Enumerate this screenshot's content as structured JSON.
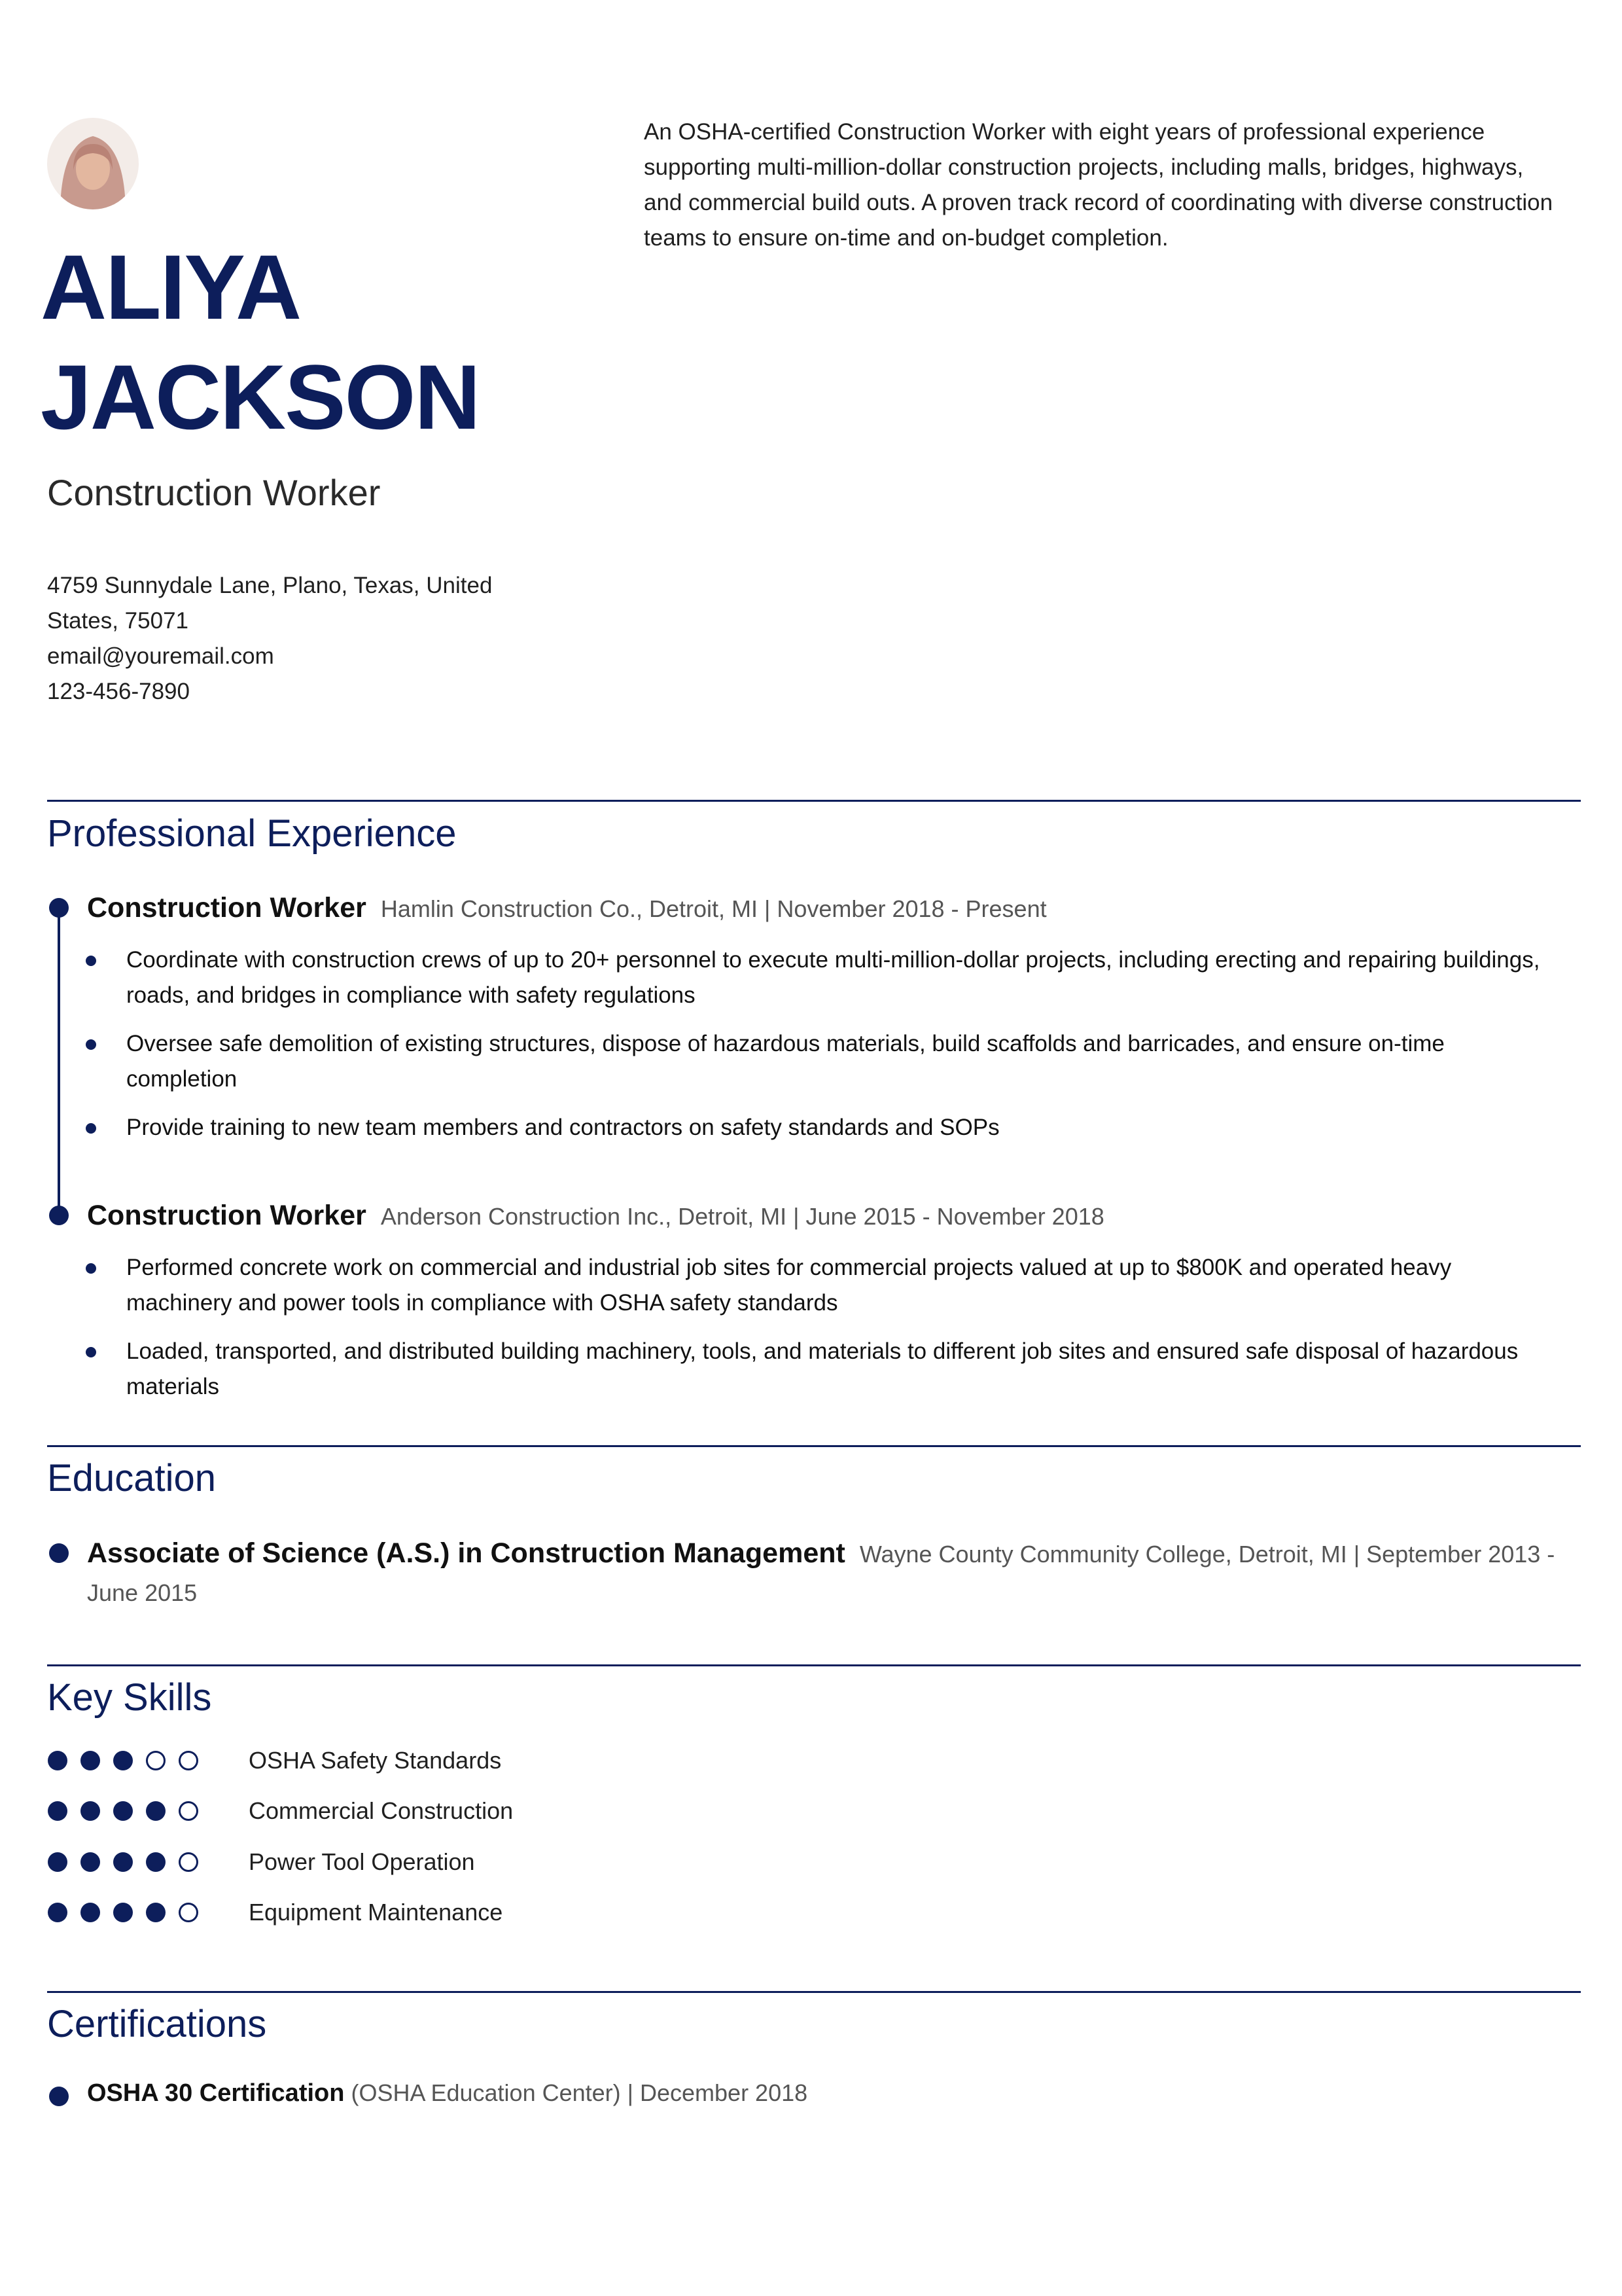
{
  "header": {
    "name": [
      "ALIYA",
      "JACKSON"
    ],
    "title": "Construction Worker",
    "summary": "An OSHA-certified Construction Worker with eight years of professional experience supporting multi-million-dollar construction projects, including malls, bridges, highways, and commercial build outs. A proven track record of coordinating with diverse construction teams to ensure on-time and on-budget completion.",
    "contact": {
      "address": "4759 Sunnydale Lane, Plano, Texas, United States, 75071",
      "email": "email@youremail.com",
      "phone": "123-456-7890"
    }
  },
  "sections": {
    "experience": {
      "title": "Professional Experience",
      "jobs": [
        {
          "role": "Construction Worker",
          "details": "Hamlin Construction Co., Detroit, MI | November 2018 - Present",
          "bullets": [
            "Coordinate with construction crews of up to 20+ personnel to execute multi-million-dollar projects, including erecting and repairing buildings, roads, and bridges in compliance with safety regulations",
            "Oversee safe demolition of existing structures, dispose of hazardous materials, build scaffolds and barricades, and ensure on-time completion",
            "Provide training to new team members and contractors on safety standards and SOPs"
          ]
        },
        {
          "role": "Construction Worker",
          "details": "Anderson Construction Inc., Detroit, MI | June 2015 - November 2018",
          "bullets": [
            "Performed concrete work on commercial and industrial job sites for commercial projects valued at up to $800K and operated heavy machinery and power tools in compliance with OSHA safety standards",
            "Loaded, transported, and distributed building machinery, tools, and materials to different job sites and ensured safe disposal of hazardous materials"
          ]
        }
      ]
    },
    "education": {
      "title": "Education",
      "items": [
        {
          "degree": "Associate of Science (A.S.) in Construction Management",
          "details": "Wayne County Community College, Detroit, MI | September 2013 - June 2015"
        }
      ]
    },
    "skills": {
      "title": "Key Skills",
      "scale": 5,
      "items": [
        {
          "name": "OSHA Safety Standards",
          "rating": 3
        },
        {
          "name": "Commercial Construction",
          "rating": 4
        },
        {
          "name": "Power Tool Operation",
          "rating": 4
        },
        {
          "name": "Equipment Maintenance",
          "rating": 4
        }
      ]
    },
    "certifications": {
      "title": "Certifications",
      "items": [
        {
          "name": "OSHA 30 Certification",
          "details": "(OSHA Education Center) | December 2018"
        }
      ]
    }
  }
}
